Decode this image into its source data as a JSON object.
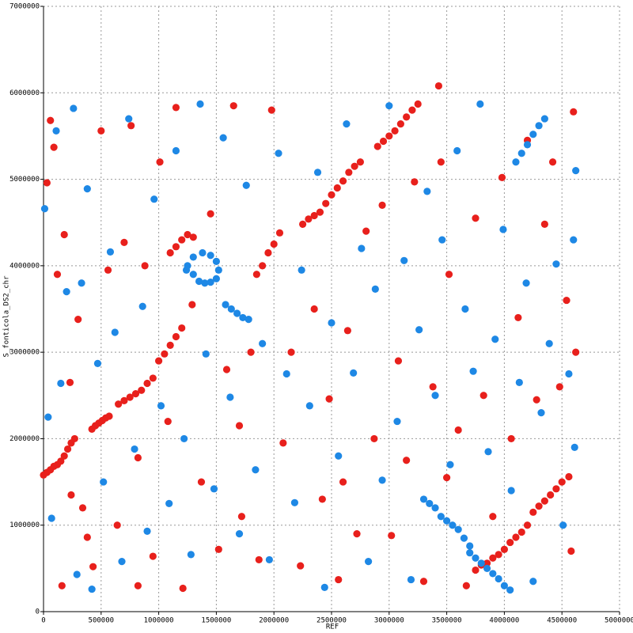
{
  "chart_data": {
    "type": "scatter",
    "x_label": "REF",
    "y_label": "S_fonticola_DS2_chr",
    "xlim": [
      0,
      5000000
    ],
    "ylim": [
      0,
      7000000
    ],
    "xticks": [
      0,
      500000,
      1000000,
      1500000,
      2000000,
      2500000,
      3000000,
      3500000,
      4000000,
      4500000,
      5000000
    ],
    "yticks": [
      0,
      1000000,
      2000000,
      3000000,
      4000000,
      5000000,
      6000000,
      7000000
    ],
    "grid": true,
    "series": [
      {
        "color": "#e8201c",
        "x": [
          0,
          30000,
          60000,
          90000,
          120000,
          150000,
          180000,
          210000,
          240000,
          270000,
          420000,
          450000,
          480000,
          510000,
          540000,
          570000,
          650000,
          700000,
          750000,
          800000,
          850000,
          900000,
          950000,
          1000000,
          1050000,
          1100000,
          1150000,
          1200000,
          1100000,
          1150000,
          1200000,
          1250000,
          1300000,
          1850000,
          1900000,
          1950000,
          2000000,
          2050000,
          2250000,
          2300000,
          2350000,
          2400000,
          2450000,
          2500000,
          2550000,
          2600000,
          2650000,
          2700000,
          2750000,
          2900000,
          2950000,
          3000000,
          3050000,
          3100000,
          3150000,
          3200000,
          3250000,
          3430000,
          3750000,
          3800000,
          3850000,
          3900000,
          3950000,
          4000000,
          4050000,
          4100000,
          4150000,
          4200000,
          4250000,
          4300000,
          4350000,
          4400000,
          4450000,
          4500000,
          4560000,
          30000,
          60000,
          90000,
          120000,
          180000,
          230000,
          300000,
          340000,
          380000,
          430000,
          500000,
          560000,
          640000,
          700000,
          760000,
          820000,
          880000,
          950000,
          1010000,
          1080000,
          1150000,
          1210000,
          1290000,
          1370000,
          1450000,
          1520000,
          1590000,
          1650000,
          1720000,
          1800000,
          1870000,
          1980000,
          2080000,
          2150000,
          2230000,
          2350000,
          2420000,
          2480000,
          2560000,
          2640000,
          2720000,
          2800000,
          2870000,
          2940000,
          3020000,
          3080000,
          3150000,
          3220000,
          3300000,
          3380000,
          3450000,
          3520000,
          3600000,
          3670000,
          3750000,
          3820000,
          3900000,
          3980000,
          4060000,
          4120000,
          4200000,
          4280000,
          4350000,
          4420000,
          4480000,
          4540000,
          4600000,
          4620000,
          4580000,
          160000,
          240000,
          820000,
          1700000,
          2600000,
          3500000
        ],
        "values": [
          1580000,
          1610000,
          1640000,
          1680000,
          1700000,
          1740000,
          1800000,
          1880000,
          1950000,
          2000000,
          2110000,
          2150000,
          2180000,
          2210000,
          2240000,
          2260000,
          2400000,
          2440000,
          2480000,
          2520000,
          2560000,
          2640000,
          2700000,
          2900000,
          2980000,
          3080000,
          3180000,
          3280000,
          4150000,
          4220000,
          4300000,
          4360000,
          4330000,
          3900000,
          4000000,
          4150000,
          4250000,
          4380000,
          4480000,
          4540000,
          4580000,
          4620000,
          4720000,
          4820000,
          4900000,
          4980000,
          5080000,
          5150000,
          5200000,
          5380000,
          5440000,
          5500000,
          5560000,
          5640000,
          5720000,
          5800000,
          5870000,
          6080000,
          480000,
          540000,
          560000,
          620000,
          660000,
          720000,
          800000,
          860000,
          920000,
          1000000,
          1150000,
          1220000,
          1280000,
          1350000,
          1420000,
          1500000,
          1560000,
          4960000,
          5680000,
          5370000,
          3900000,
          4360000,
          2650000,
          3380000,
          1200000,
          860000,
          520000,
          5560000,
          3950000,
          1000000,
          4270000,
          5620000,
          1780000,
          4000000,
          640000,
          5200000,
          2200000,
          5830000,
          270000,
          3550000,
          1500000,
          4600000,
          720000,
          2800000,
          5850000,
          1100000,
          3000000,
          600000,
          5800000,
          1950000,
          3000000,
          530000,
          3500000,
          1300000,
          2460000,
          370000,
          3250000,
          900000,
          4400000,
          2000000,
          4700000,
          880000,
          2900000,
          1750000,
          4970000,
          350000,
          2600000,
          5200000,
          3900000,
          2100000,
          300000,
          4550000,
          2500000,
          1100000,
          5020000,
          2000000,
          3400000,
          5450000,
          2450000,
          4480000,
          5200000,
          2600000,
          3600000,
          5780000,
          3000000,
          700000,
          300000,
          1350000,
          300000,
          2150000,
          1500000,
          1550000
        ]
      },
      {
        "color": "#1e88e5",
        "x": [
          1250000,
          1300000,
          1350000,
          1400000,
          1450000,
          1500000,
          1520000,
          1500000,
          1450000,
          1380000,
          1300000,
          1240000,
          1580000,
          1630000,
          1680000,
          1730000,
          1780000,
          3300000,
          3350000,
          3400000,
          3450000,
          3500000,
          3550000,
          3600000,
          3650000,
          3700000,
          3700000,
          3750000,
          3800000,
          3850000,
          3900000,
          3950000,
          4000000,
          4050000,
          4100000,
          4150000,
          4200000,
          4250000,
          4300000,
          4350000,
          10000,
          40000,
          70000,
          110000,
          150000,
          200000,
          260000,
          290000,
          330000,
          380000,
          420000,
          470000,
          520000,
          580000,
          620000,
          680000,
          740000,
          790000,
          860000,
          900000,
          960000,
          1020000,
          1090000,
          1150000,
          1220000,
          1280000,
          1360000,
          1410000,
          1480000,
          1560000,
          1620000,
          1700000,
          1760000,
          1840000,
          1900000,
          1960000,
          2040000,
          2110000,
          2180000,
          2240000,
          2310000,
          2380000,
          2440000,
          2500000,
          2560000,
          2630000,
          2690000,
          2760000,
          2820000,
          2880000,
          2940000,
          3000000,
          3070000,
          3130000,
          3190000,
          3260000,
          3330000,
          3400000,
          3460000,
          3530000,
          3590000,
          3660000,
          3730000,
          3790000,
          3860000,
          3920000,
          3990000,
          4060000,
          4130000,
          4190000,
          4250000,
          4320000,
          4390000,
          4450000,
          4510000,
          4560000,
          4600000,
          4620000,
          4610000
        ],
        "values": [
          4000000,
          3900000,
          3820000,
          3800000,
          3810000,
          3850000,
          3950000,
          4050000,
          4120000,
          4150000,
          4100000,
          3950000,
          3550000,
          3500000,
          3450000,
          3400000,
          3380000,
          1300000,
          1250000,
          1200000,
          1100000,
          1050000,
          1000000,
          950000,
          850000,
          760000,
          680000,
          620000,
          560000,
          500000,
          440000,
          380000,
          300000,
          250000,
          5200000,
          5300000,
          5400000,
          5520000,
          5620000,
          5700000,
          4660000,
          2250000,
          1080000,
          5560000,
          2640000,
          3700000,
          5820000,
          430000,
          3800000,
          4890000,
          260000,
          2870000,
          1500000,
          4160000,
          3230000,
          580000,
          5700000,
          1880000,
          3530000,
          930000,
          4770000,
          2380000,
          1250000,
          5330000,
          2000000,
          660000,
          5870000,
          2980000,
          1420000,
          5480000,
          2480000,
          900000,
          4930000,
          1640000,
          3100000,
          600000,
          5300000,
          2750000,
          1260000,
          3950000,
          2380000,
          5080000,
          280000,
          3340000,
          1800000,
          5640000,
          2760000,
          4200000,
          580000,
          3730000,
          1520000,
          5850000,
          2200000,
          4060000,
          370000,
          3260000,
          4860000,
          2500000,
          4300000,
          1700000,
          5330000,
          3500000,
          2780000,
          5870000,
          1850000,
          3150000,
          4420000,
          1400000,
          2650000,
          3800000,
          350000,
          2300000,
          3100000,
          4020000,
          1000000,
          2750000,
          4300000,
          5100000,
          1900000
        ]
      }
    ]
  }
}
